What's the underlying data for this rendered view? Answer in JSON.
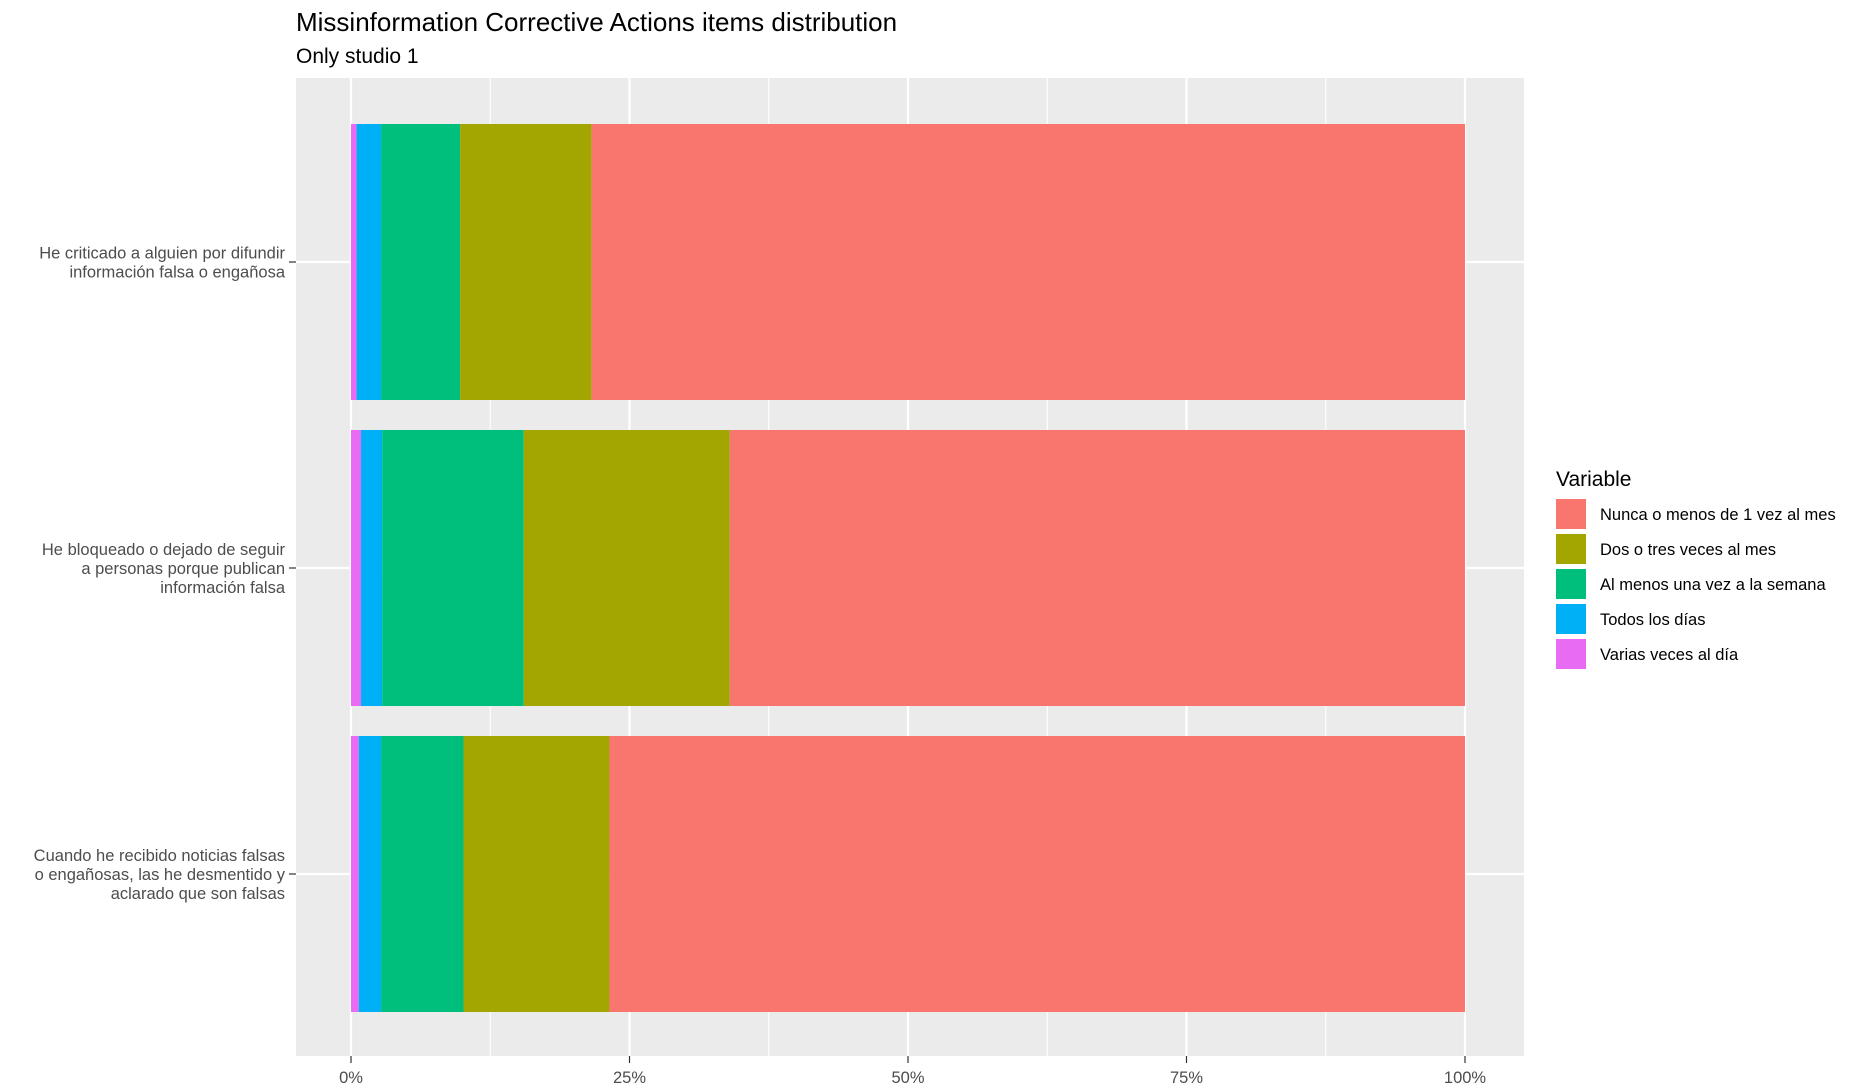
{
  "chart_data": {
    "type": "bar",
    "orientation": "horizontal",
    "stacked": true,
    "normalized": true,
    "title": "Missinformation Corrective Actions items distribution",
    "subtitle": "Only studio 1",
    "xlabel": "",
    "ylabel": "",
    "xlim": [
      0,
      1
    ],
    "x_ticks": [
      "0%",
      "25%",
      "50%",
      "75%",
      "100%"
    ],
    "x_tick_values": [
      0,
      0.25,
      0.5,
      0.75,
      1.0
    ],
    "grid": true,
    "legend_title": "Variable",
    "legend_position": "right",
    "categories": [
      {
        "lines": [
          "He criticado a alguien por difundir",
          "información falsa o engañosa"
        ]
      },
      {
        "lines": [
          "He bloqueado o dejado de seguir",
          "a personas porque publican",
          "información falsa"
        ]
      },
      {
        "lines": [
          "Cuando he recibido noticias falsas",
          "o engañosas, las he desmentido y",
          "aclarado que son falsas"
        ]
      }
    ],
    "series": [
      {
        "name": "Varias veces al día",
        "color": "#E76BF3",
        "values": [
          0.005,
          0.009,
          0.007
        ]
      },
      {
        "name": "Todos los días",
        "color": "#00B0F6",
        "values": [
          0.022,
          0.019,
          0.02
        ]
      },
      {
        "name": "Al menos una vez a la semana",
        "color": "#00BF7D",
        "values": [
          0.071,
          0.127,
          0.074
        ]
      },
      {
        "name": "Dos o tres veces al mes",
        "color": "#A3A500",
        "values": [
          0.118,
          0.185,
          0.131
        ]
      },
      {
        "name": "Nunca o menos de 1 vez al mes",
        "color": "#F8766D",
        "values": [
          0.784,
          0.66,
          0.768
        ]
      }
    ],
    "legend_order": [
      "Nunca o menos de 1 vez al mes",
      "Dos o tres veces al mes",
      "Al menos una vez a la semana",
      "Todos los días",
      "Varias veces al día"
    ]
  }
}
